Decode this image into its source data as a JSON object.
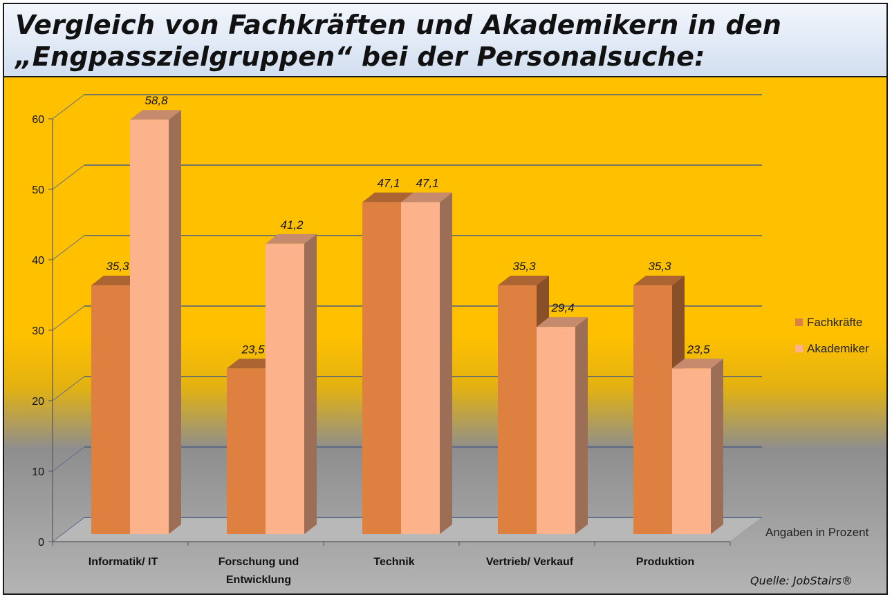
{
  "title_lines": [
    "Vergleich von Fachkräften und Akademikern in den",
    "„Engpasszielgruppen“ bei der Personalsuche:"
  ],
  "colors": {
    "background_top": "#FFC000",
    "background_bottom": "#A6A6A6",
    "series_fachkraefte": "#DD8040",
    "series_akademiker": "#FCB28A",
    "title_bar": "#DCE6F2"
  },
  "chart_data": {
    "type": "bar",
    "categories": [
      "Informatik/ IT",
      "Forschung und\nEntwicklung",
      "Technik",
      "Vertrieb/ Verkauf",
      "Produktion"
    ],
    "series": [
      {
        "name": "Fachkräfte",
        "values": [
          35.3,
          23.5,
          47.1,
          35.3,
          35.3
        ],
        "labels": [
          "35,3",
          "23,5",
          "47,1",
          "35,3",
          "35,3"
        ]
      },
      {
        "name": "Akademiker",
        "values": [
          58.8,
          41.2,
          47.1,
          29.4,
          23.5
        ],
        "labels": [
          "58,8",
          "41,2",
          "47,1",
          "29,4",
          "23,5"
        ]
      }
    ],
    "ylim": [
      0,
      60
    ],
    "yticks": [
      "0",
      "10",
      "20",
      "30",
      "40",
      "50",
      "60"
    ],
    "grid": true,
    "legend_position": "right",
    "unit_note": "Angaben in Prozent",
    "source": "Quelle: JobStairs®"
  }
}
